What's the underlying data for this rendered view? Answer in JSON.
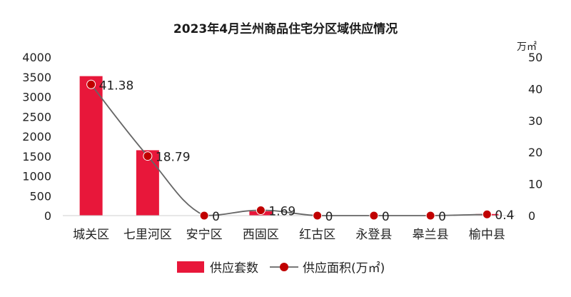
{
  "chart_data": {
    "type": "bar",
    "title": "2023年4月兰州商品住宅分区域供应情况",
    "categories": [
      "城关区",
      "七里河区",
      "安宁区",
      "西固区",
      "红古区",
      "永登县",
      "皋兰县",
      "榆中县"
    ],
    "series": [
      {
        "name": "供应套数",
        "type": "bar",
        "axis": "left",
        "color": "#e8173a",
        "values": [
          3520,
          1650,
          0,
          110,
          0,
          0,
          0,
          40
        ]
      },
      {
        "name": "供应面积(万㎡)",
        "type": "line",
        "axis": "right",
        "color": "#c00000",
        "values": [
          41.38,
          18.79,
          0,
          1.69,
          0,
          0,
          0,
          0.4
        ],
        "data_labels": [
          "41.38",
          "18.79",
          "0",
          "1.69",
          "0",
          "0",
          "0",
          "0.4"
        ]
      }
    ],
    "y_left": {
      "min": 0,
      "max": 4000,
      "ticks": [
        "0",
        "500",
        "1000",
        "1500",
        "2000",
        "2500",
        "3000",
        "3500",
        "4000"
      ]
    },
    "y_right": {
      "min": 0,
      "max": 50,
      "unit": "万㎡",
      "ticks": [
        "0",
        "10",
        "20",
        "30",
        "40",
        "50"
      ]
    },
    "legend": {
      "position": "bottom"
    },
    "grid": false
  }
}
